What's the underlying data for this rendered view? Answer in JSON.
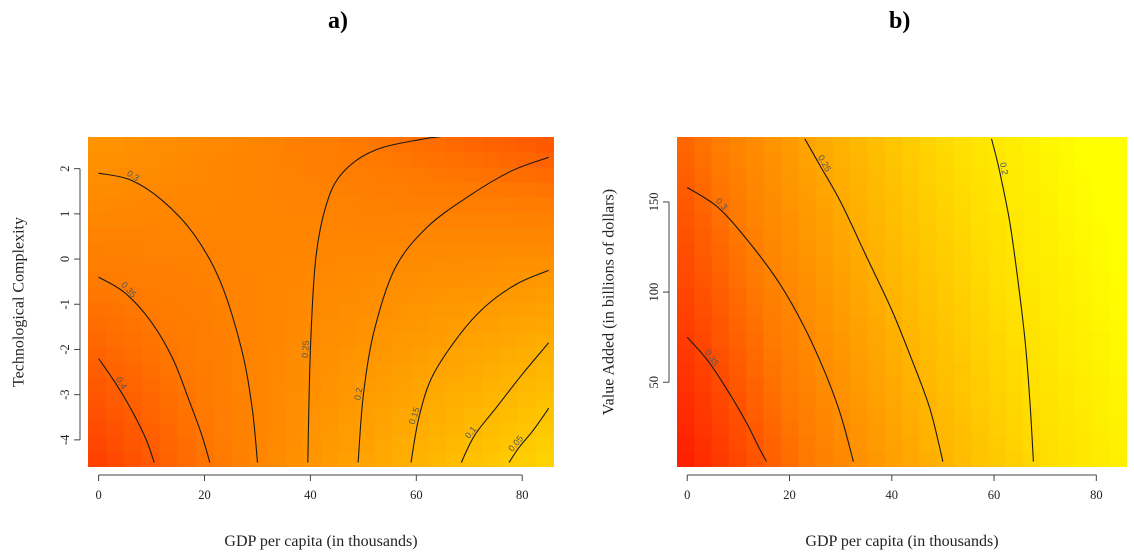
{
  "panels": {
    "a": {
      "letter": "a)"
    },
    "b": {
      "letter": "b)"
    }
  },
  "chart_data": [
    {
      "type": "heatmap",
      "panel": "a)",
      "xlabel": "GDP per capita (in thousands)",
      "ylabel": "Technological Complexity",
      "xlim": [
        -2,
        86
      ],
      "ylim": [
        -4.6,
        2.7
      ],
      "xticks": [
        0,
        20,
        40,
        60,
        80
      ],
      "yticks": [
        2,
        1,
        0,
        -1,
        -2,
        -3,
        -4
      ],
      "colormap": [
        "#ff2000",
        "#ff7a00",
        "#ffb000",
        "#ffe000",
        "#ffff00",
        "#fffde8"
      ],
      "value_range": [
        0.02,
        0.45
      ],
      "contours": [
        {
          "level": "0.3",
          "label": "0.3",
          "points": [
            [
              0,
              1.9
            ],
            [
              6,
              1.75
            ],
            [
              12,
              1.3
            ],
            [
              18,
              0.55
            ],
            [
              23,
              -0.5
            ],
            [
              27,
              -2.0
            ],
            [
              29,
              -3.3
            ],
            [
              30,
              -4.5
            ]
          ]
        },
        {
          "level": "0.35",
          "label": "0.35",
          "points": [
            [
              0,
              -0.4
            ],
            [
              5,
              -0.75
            ],
            [
              10,
              -1.4
            ],
            [
              14,
              -2.2
            ],
            [
              17,
              -3.1
            ],
            [
              19.5,
              -3.9
            ],
            [
              21,
              -4.5
            ]
          ]
        },
        {
          "level": "0.4",
          "label": "0.4",
          "points": [
            [
              0,
              -2.2
            ],
            [
              3.5,
              -2.8
            ],
            [
              6.5,
              -3.4
            ],
            [
              9,
              -4.0
            ],
            [
              10.5,
              -4.5
            ]
          ]
        },
        {
          "level": "0.25",
          "label": "0.25",
          "points": [
            [
              39.5,
              -4.5
            ],
            [
              40,
              -2.0
            ],
            [
              41,
              0.0
            ],
            [
              43,
              1.2
            ],
            [
              46,
              1.9
            ],
            [
              52,
              2.4
            ],
            [
              61,
              2.65
            ],
            [
              68,
              2.75
            ]
          ]
        },
        {
          "level": "0.2",
          "label": "0.2",
          "points": [
            [
              49,
              -4.5
            ],
            [
              50,
              -3.0
            ],
            [
              52,
              -1.6
            ],
            [
              56,
              -0.2
            ],
            [
              62,
              0.7
            ],
            [
              70,
              1.4
            ],
            [
              78,
              1.95
            ],
            [
              85,
              2.25
            ]
          ]
        },
        {
          "level": "0.15",
          "label": "0.15",
          "points": [
            [
              59,
              -4.5
            ],
            [
              60.5,
              -3.5
            ],
            [
              63,
              -2.6
            ],
            [
              68,
              -1.7
            ],
            [
              73,
              -1.05
            ],
            [
              79,
              -0.55
            ],
            [
              85,
              -0.25
            ]
          ]
        },
        {
          "level": "0.1",
          "label": "0.1",
          "points": [
            [
              68.5,
              -4.5
            ],
            [
              71,
              -3.9
            ],
            [
              75,
              -3.3
            ],
            [
              80,
              -2.55
            ],
            [
              85,
              -1.85
            ]
          ]
        },
        {
          "level": "0.05",
          "label": "0.05",
          "points": [
            [
              77.5,
              -4.5
            ],
            [
              79.5,
              -4.15
            ],
            [
              82,
              -3.8
            ],
            [
              85,
              -3.3
            ]
          ]
        }
      ]
    },
    {
      "type": "heatmap",
      "panel": "b)",
      "xlabel": "GDP per capita (in thousands)",
      "ylabel": "Value Added (in billions of dollars)",
      "xlim": [
        -2,
        86
      ],
      "ylim": [
        3,
        186
      ],
      "xticks": [
        0,
        20,
        40,
        60,
        80
      ],
      "yticks": [
        150,
        100,
        50
      ],
      "colormap": [
        "#ff2000",
        "#ff7a00",
        "#ffb000",
        "#ffe000",
        "#ffff00"
      ],
      "value_range": [
        0.15,
        0.4
      ],
      "contours": [
        {
          "level": "0.35",
          "label": "0.35",
          "points": [
            [
              0,
              75
            ],
            [
              4,
              62
            ],
            [
              8,
              45
            ],
            [
              11.5,
              28
            ],
            [
              14,
              14
            ],
            [
              15.5,
              6
            ]
          ]
        },
        {
          "level": "0.3",
          "label": "0.3",
          "points": [
            [
              0,
              158
            ],
            [
              6,
              147
            ],
            [
              12,
              128
            ],
            [
              18,
              105
            ],
            [
              23,
              80
            ],
            [
              27,
              55
            ],
            [
              30,
              32
            ],
            [
              32.5,
              6
            ]
          ]
        },
        {
          "level": "0.25",
          "label": "0.25",
          "points": [
            [
              23,
              185
            ],
            [
              26,
              170
            ],
            [
              30,
              150
            ],
            [
              35,
              120
            ],
            [
              40,
              90
            ],
            [
              44,
              62
            ],
            [
              47.5,
              35
            ],
            [
              50,
              6
            ]
          ]
        },
        {
          "level": "0.2",
          "label": "0.2",
          "points": [
            [
              59.5,
              185
            ],
            [
              61,
              168
            ],
            [
              63,
              140
            ],
            [
              64.5,
              110
            ],
            [
              66,
              75
            ],
            [
              67,
              40
            ],
            [
              67.7,
              6
            ]
          ]
        }
      ]
    }
  ]
}
